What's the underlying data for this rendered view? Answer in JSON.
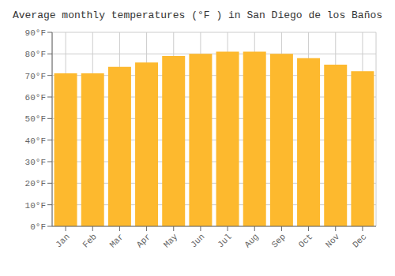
{
  "chart_data": {
    "type": "bar",
    "title": "Average monthly temperatures (°F ) in San Diego de los Baños",
    "categories": [
      "Jan",
      "Feb",
      "Mar",
      "Apr",
      "May",
      "Jun",
      "Jul",
      "Aug",
      "Sep",
      "Oct",
      "Nov",
      "Dec"
    ],
    "values": [
      71,
      71,
      74,
      76,
      79,
      80,
      81,
      81,
      80,
      78,
      75,
      72
    ],
    "color": "#FDB92E",
    "ylim": [
      0,
      90
    ],
    "yticks": [
      {
        "value": 0,
        "label": "0°F"
      },
      {
        "value": 10,
        "label": "10°F"
      },
      {
        "value": 20,
        "label": "20°F"
      },
      {
        "value": 30,
        "label": "30°F"
      },
      {
        "value": 40,
        "label": "40°F"
      },
      {
        "value": 50,
        "label": "50°F"
      },
      {
        "value": 60,
        "label": "60°F"
      },
      {
        "value": 70,
        "label": "70°F"
      },
      {
        "value": 80,
        "label": "80°F"
      },
      {
        "value": 90,
        "label": "90°F"
      }
    ],
    "grid": true
  }
}
